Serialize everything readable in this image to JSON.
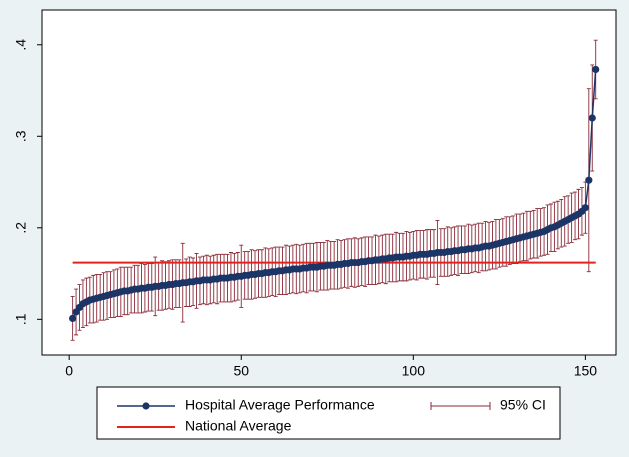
{
  "chart_data": {
    "type": "errorbar",
    "xlim": [
      -7.9,
      158.9
    ],
    "ylim": [
      0.061,
      0.438
    ],
    "xticks": [
      0,
      50,
      100,
      150
    ],
    "yticks": [
      {
        "value": 0.1,
        "label": ".1"
      },
      {
        "value": 0.2,
        "label": ".2"
      },
      {
        "value": 0.3,
        "label": ".3"
      },
      {
        "value": 0.4,
        "label": ".4"
      }
    ],
    "x": [
      1,
      2,
      3,
      4,
      5,
      6,
      7,
      8,
      9,
      10,
      11,
      12,
      13,
      14,
      15,
      16,
      17,
      18,
      19,
      20,
      21,
      22,
      23,
      24,
      25,
      26,
      27,
      28,
      29,
      30,
      31,
      32,
      33,
      34,
      35,
      36,
      37,
      38,
      39,
      40,
      41,
      42,
      43,
      44,
      45,
      46,
      47,
      48,
      49,
      50,
      51,
      52,
      53,
      54,
      55,
      56,
      57,
      58,
      59,
      60,
      61,
      62,
      63,
      64,
      65,
      66,
      67,
      68,
      69,
      70,
      71,
      72,
      73,
      74,
      75,
      76,
      77,
      78,
      79,
      80,
      81,
      82,
      83,
      84,
      85,
      86,
      87,
      88,
      89,
      90,
      91,
      92,
      93,
      94,
      95,
      96,
      97,
      98,
      99,
      100,
      101,
      102,
      103,
      104,
      105,
      106,
      107,
      108,
      109,
      110,
      111,
      112,
      113,
      114,
      115,
      116,
      117,
      118,
      119,
      120,
      121,
      122,
      123,
      124,
      125,
      126,
      127,
      128,
      129,
      130,
      131,
      132,
      133,
      134,
      135,
      136,
      137,
      138,
      139,
      140,
      141,
      142,
      143,
      144,
      145,
      146,
      147,
      148,
      149,
      150,
      151,
      152,
      153
    ],
    "series": [
      {
        "name": "Hospital Average Performance",
        "color": "#1b3566",
        "values": [
          0.101,
          0.108,
          0.113,
          0.117,
          0.119,
          0.121,
          0.122,
          0.123,
          0.124,
          0.125,
          0.126,
          0.127,
          0.128,
          0.129,
          0.13,
          0.131,
          0.131,
          0.132,
          0.133,
          0.133,
          0.134,
          0.134,
          0.135,
          0.135,
          0.136,
          0.136,
          0.137,
          0.137,
          0.138,
          0.138,
          0.139,
          0.139,
          0.14,
          0.14,
          0.141,
          0.141,
          0.142,
          0.142,
          0.143,
          0.143,
          0.143,
          0.144,
          0.144,
          0.145,
          0.145,
          0.145,
          0.146,
          0.146,
          0.147,
          0.147,
          0.148,
          0.148,
          0.149,
          0.149,
          0.15,
          0.15,
          0.151,
          0.151,
          0.152,
          0.152,
          0.153,
          0.153,
          0.154,
          0.154,
          0.155,
          0.155,
          0.155,
          0.156,
          0.156,
          0.157,
          0.157,
          0.157,
          0.158,
          0.158,
          0.159,
          0.159,
          0.159,
          0.16,
          0.16,
          0.161,
          0.161,
          0.162,
          0.162,
          0.162,
          0.163,
          0.163,
          0.164,
          0.164,
          0.165,
          0.165,
          0.166,
          0.166,
          0.167,
          0.167,
          0.168,
          0.168,
          0.168,
          0.169,
          0.169,
          0.17,
          0.17,
          0.171,
          0.171,
          0.171,
          0.172,
          0.172,
          0.173,
          0.173,
          0.173,
          0.174,
          0.174,
          0.175,
          0.175,
          0.176,
          0.176,
          0.177,
          0.177,
          0.178,
          0.178,
          0.179,
          0.18,
          0.18,
          0.181,
          0.182,
          0.183,
          0.184,
          0.185,
          0.186,
          0.187,
          0.188,
          0.189,
          0.19,
          0.191,
          0.192,
          0.193,
          0.194,
          0.195,
          0.196,
          0.198,
          0.2,
          0.201,
          0.203,
          0.205,
          0.207,
          0.209,
          0.211,
          0.213,
          0.215,
          0.218,
          0.222,
          0.252,
          0.32,
          0.373
        ],
        "errors": [
          0.024,
          0.025,
          0.025,
          0.026,
          0.026,
          0.025,
          0.026,
          0.026,
          0.025,
          0.026,
          0.026,
          0.025,
          0.026,
          0.026,
          0.027,
          0.026,
          0.026,
          0.025,
          0.026,
          0.026,
          0.027,
          0.026,
          0.026,
          0.026,
          0.032,
          0.026,
          0.027,
          0.026,
          0.026,
          0.027,
          0.026,
          0.026,
          0.043,
          0.026,
          0.027,
          0.026,
          0.03,
          0.026,
          0.026,
          0.027,
          0.026,
          0.026,
          0.027,
          0.026,
          0.026,
          0.026,
          0.027,
          0.026,
          0.026,
          0.034,
          0.026,
          0.026,
          0.027,
          0.026,
          0.026,
          0.026,
          0.027,
          0.026,
          0.026,
          0.027,
          0.026,
          0.026,
          0.027,
          0.026,
          0.026,
          0.027,
          0.026,
          0.026,
          0.027,
          0.026,
          0.026,
          0.027,
          0.026,
          0.026,
          0.027,
          0.026,
          0.026,
          0.027,
          0.026,
          0.026,
          0.027,
          0.026,
          0.027,
          0.026,
          0.026,
          0.027,
          0.026,
          0.026,
          0.027,
          0.026,
          0.026,
          0.027,
          0.026,
          0.026,
          0.027,
          0.026,
          0.026,
          0.027,
          0.026,
          0.026,
          0.027,
          0.026,
          0.026,
          0.027,
          0.026,
          0.026,
          0.035,
          0.026,
          0.026,
          0.027,
          0.026,
          0.026,
          0.027,
          0.026,
          0.026,
          0.027,
          0.026,
          0.026,
          0.027,
          0.026,
          0.027,
          0.026,
          0.026,
          0.027,
          0.026,
          0.026,
          0.027,
          0.026,
          0.026,
          0.027,
          0.026,
          0.026,
          0.027,
          0.026,
          0.026,
          0.027,
          0.026,
          0.026,
          0.027,
          0.026,
          0.027,
          0.026,
          0.026,
          0.027,
          0.026,
          0.027,
          0.026,
          0.027,
          0.026,
          0.028,
          0.1,
          0.058,
          0.032
        ]
      }
    ],
    "error_bars": {
      "name": "95% CI",
      "color": "#8a2a38"
    },
    "reference_line": {
      "name": "National Average",
      "value": 0.162,
      "color": "#e3231b"
    }
  }
}
